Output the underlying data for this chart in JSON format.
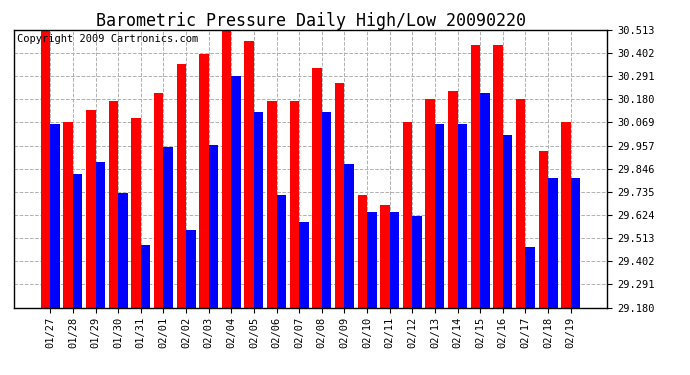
{
  "title": "Barometric Pressure Daily High/Low 20090220",
  "copyright": "Copyright 2009 Cartronics.com",
  "dates": [
    "01/27",
    "01/28",
    "01/29",
    "01/30",
    "01/31",
    "02/01",
    "02/02",
    "02/03",
    "02/04",
    "02/05",
    "02/06",
    "02/07",
    "02/08",
    "02/09",
    "02/10",
    "02/11",
    "02/12",
    "02/13",
    "02/14",
    "02/15",
    "02/16",
    "02/17",
    "02/18",
    "02/19"
  ],
  "highs": [
    30.51,
    30.07,
    30.13,
    30.17,
    30.09,
    30.21,
    30.35,
    30.4,
    30.52,
    30.46,
    30.17,
    30.17,
    30.33,
    30.26,
    29.72,
    29.67,
    30.07,
    30.18,
    30.22,
    30.44,
    30.44,
    30.18,
    29.93,
    30.07
  ],
  "lows": [
    30.06,
    29.82,
    29.88,
    29.73,
    29.48,
    29.95,
    29.55,
    29.96,
    30.29,
    30.12,
    29.72,
    29.59,
    30.12,
    29.87,
    29.64,
    29.64,
    29.62,
    30.06,
    30.06,
    30.21,
    30.01,
    29.47,
    29.8,
    29.8
  ],
  "ymin": 29.18,
  "ymax": 30.513,
  "yticks": [
    29.18,
    29.291,
    29.402,
    29.513,
    29.624,
    29.735,
    29.846,
    29.957,
    30.069,
    30.18,
    30.291,
    30.402,
    30.513
  ],
  "high_color": "#ff0000",
  "low_color": "#0000ff",
  "bg_color": "#ffffff",
  "grid_color": "#b0b0b0",
  "title_fontsize": 12,
  "copyright_fontsize": 7.5
}
